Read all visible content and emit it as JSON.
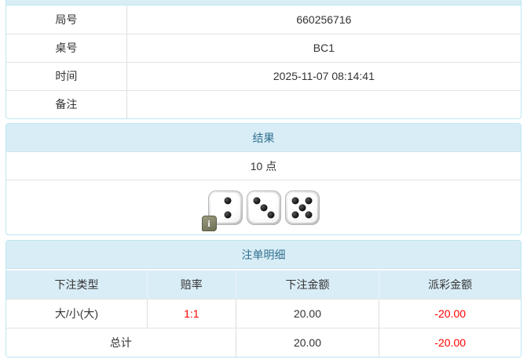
{
  "colors": {
    "panel_border": "#bce8f1",
    "heading_bg": "#d9edf7",
    "heading_text": "#31708f",
    "row_border": "#dddddd",
    "body_text": "#333333",
    "negative_text": "#ff0000",
    "info_badge_bg": "#75755c",
    "die_pip": "#0c0c0c"
  },
  "info_table": {
    "rows": [
      {
        "label": "局号",
        "value": "660256716"
      },
      {
        "label": "桌号",
        "value": "BC1"
      },
      {
        "label": "时间",
        "value": "2025-11-07 08:14:41"
      },
      {
        "label": "备注",
        "value": ""
      }
    ]
  },
  "result_panel": {
    "title": "结果",
    "points": "10 点",
    "dice": [
      2,
      3,
      5
    ],
    "info_badge": "i"
  },
  "bets_panel": {
    "title": "注单明细",
    "columns": [
      "下注类型",
      "赔率",
      "下注金额",
      "派彩金额"
    ],
    "rows": [
      {
        "type": "大/小(大)",
        "odds": "1:1",
        "bet": "20.00",
        "payout": "-20.00"
      }
    ],
    "total": {
      "label": "总计",
      "bet": "20.00",
      "payout": "-20.00"
    }
  }
}
